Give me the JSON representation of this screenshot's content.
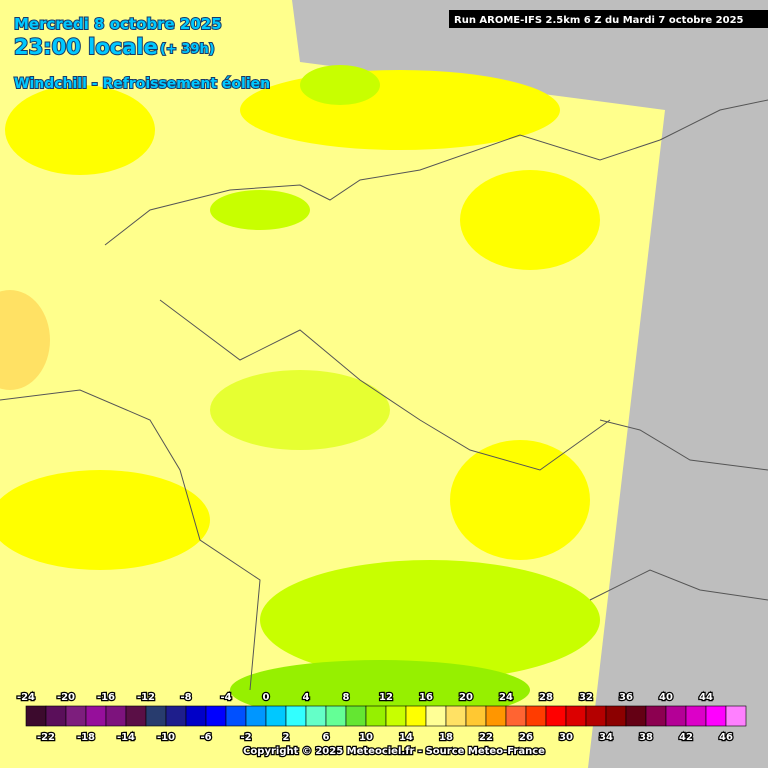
{
  "header": {
    "date": "Mercredi 8 octobre 2025",
    "time": "23:00 locale",
    "lead": "(+ 39h)",
    "parameter": "Windchill - Refroissement éolien",
    "run": "Run AROME-IFS 2.5km 6 Z du Mardi 7 octobre 2025"
  },
  "legend": {
    "labels": [
      -24,
      -22,
      -20,
      -18,
      -16,
      -14,
      -12,
      -10,
      -8,
      -6,
      -4,
      -2,
      0,
      2,
      4,
      6,
      8,
      10,
      12,
      14,
      16,
      18,
      20,
      22,
      24,
      26,
      28,
      30,
      32,
      34,
      36,
      38,
      40,
      42,
      44,
      46
    ],
    "colors": [
      "#3c0a2d",
      "#5a0f5a",
      "#7d1e7d",
      "#960f9b",
      "#7d137d",
      "#5a0f46",
      "#283c6e",
      "#1e1e8c",
      "#0000c8",
      "#0000ff",
      "#0050ff",
      "#0096ff",
      "#00c8ff",
      "#32ffff",
      "#64ffc8",
      "#64ff96",
      "#64e632",
      "#96f000",
      "#c8ff00",
      "#ffff00",
      "#ffff96",
      "#ffe164",
      "#ffc832",
      "#ff9600",
      "#ff6432",
      "#ff3c00",
      "#ff0000",
      "#dc0000",
      "#b40000",
      "#8c0000",
      "#640014",
      "#8c0050",
      "#b40096",
      "#dc00c8",
      "#ff00ff",
      "#ff80ff"
    ]
  },
  "copyright": "Copyright © 2025 Meteociel.fr - Source Meteo-France"
}
